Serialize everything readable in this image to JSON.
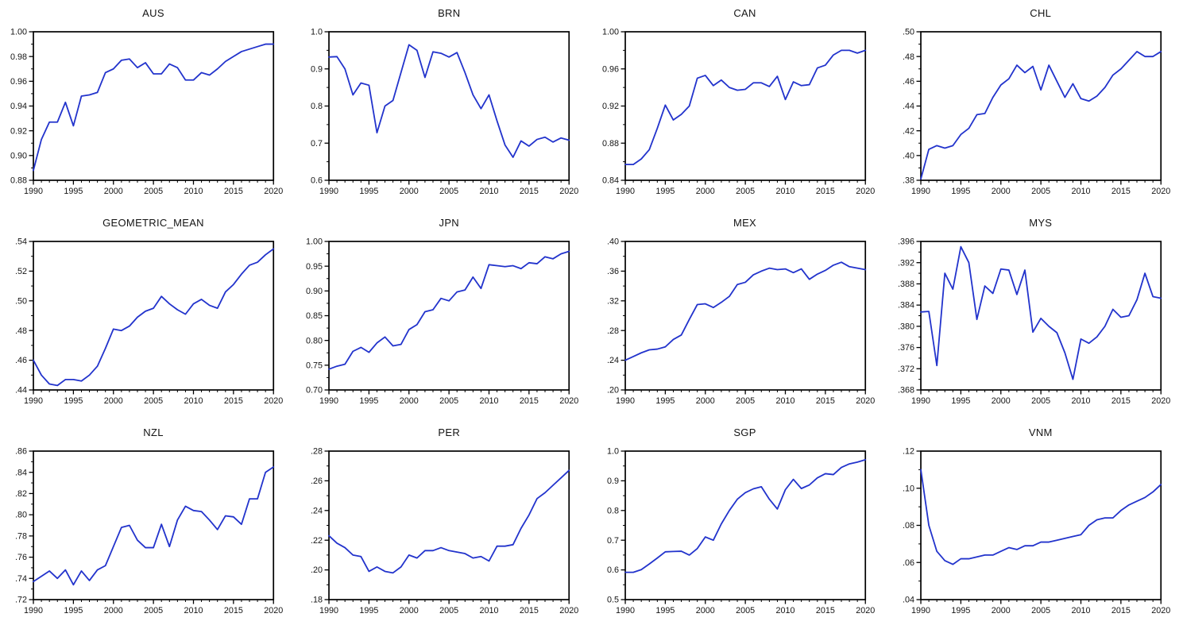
{
  "page": {
    "background": "#ffffff",
    "axis_color": "#000000",
    "label_color": "#141414",
    "series_color": "#2233cc",
    "layout": "4x3 grid of line chart panels",
    "grid": false,
    "legend": false
  },
  "chart_data": [
    {
      "type": "line",
      "title": "AUS",
      "xlabel": "",
      "ylabel": "",
      "x": [
        1990,
        1991,
        1992,
        1993,
        1994,
        1995,
        1996,
        1997,
        1998,
        1999,
        2000,
        2001,
        2002,
        2003,
        2004,
        2005,
        2006,
        2007,
        2008,
        2009,
        2010,
        2011,
        2012,
        2013,
        2014,
        2015,
        2016,
        2017,
        2018,
        2019,
        2020
      ],
      "values": [
        0.888,
        0.913,
        0.927,
        0.927,
        0.943,
        0.924,
        0.948,
        0.949,
        0.951,
        0.967,
        0.97,
        0.977,
        0.978,
        0.971,
        0.975,
        0.966,
        0.966,
        0.974,
        0.971,
        0.961,
        0.961,
        0.967,
        0.965,
        0.97,
        0.976,
        0.98,
        0.984,
        0.986,
        0.988,
        0.99,
        0.99
      ],
      "ylim": [
        0.88,
        1.0
      ],
      "ytick_values": [
        0.88,
        0.9,
        0.92,
        0.94,
        0.96,
        0.98,
        1.0
      ],
      "ytick_labels": [
        "0.88",
        "0.90",
        "0.92",
        "0.94",
        "0.96",
        "0.98",
        "1.00"
      ],
      "xtick_values": [
        1990,
        1995,
        2000,
        2005,
        2010,
        2015,
        2020
      ],
      "xtick_labels": [
        "1990",
        "1995",
        "2000",
        "2005",
        "2010",
        "2015",
        "2020"
      ]
    },
    {
      "type": "line",
      "title": "BRN",
      "xlabel": "",
      "ylabel": "",
      "x": [
        1990,
        1991,
        1992,
        1993,
        1994,
        1995,
        1996,
        1997,
        1998,
        1999,
        2000,
        2001,
        2002,
        2003,
        2004,
        2005,
        2006,
        2007,
        2008,
        2009,
        2010,
        2011,
        2012,
        2013,
        2014,
        2015,
        2016,
        2017,
        2018,
        2019,
        2020
      ],
      "values": [
        0.932,
        0.933,
        0.9,
        0.83,
        0.862,
        0.856,
        0.728,
        0.8,
        0.815,
        0.89,
        0.965,
        0.95,
        0.877,
        0.946,
        0.942,
        0.932,
        0.944,
        0.89,
        0.83,
        0.793,
        0.83,
        0.76,
        0.695,
        0.662,
        0.706,
        0.692,
        0.71,
        0.716,
        0.703,
        0.714,
        0.708
      ],
      "ylim": [
        0.6,
        1.0
      ],
      "ytick_values": [
        0.6,
        0.7,
        0.8,
        0.9,
        1.0
      ],
      "ytick_labels": [
        "0.6",
        "0.7",
        "0.8",
        "0.9",
        "1.0"
      ],
      "xtick_values": [
        1990,
        1995,
        2000,
        2005,
        2010,
        2015,
        2020
      ],
      "xtick_labels": [
        "1990",
        "1995",
        "2000",
        "2005",
        "2010",
        "2015",
        "2020"
      ]
    },
    {
      "type": "line",
      "title": "CAN",
      "xlabel": "",
      "ylabel": "",
      "x": [
        1990,
        1991,
        1992,
        1993,
        1994,
        1995,
        1996,
        1997,
        1998,
        1999,
        2000,
        2001,
        2002,
        2003,
        2004,
        2005,
        2006,
        2007,
        2008,
        2009,
        2010,
        2011,
        2012,
        2013,
        2014,
        2015,
        2016,
        2017,
        2018,
        2019,
        2020
      ],
      "values": [
        0.857,
        0.857,
        0.863,
        0.873,
        0.896,
        0.921,
        0.905,
        0.911,
        0.92,
        0.95,
        0.953,
        0.942,
        0.948,
        0.94,
        0.937,
        0.938,
        0.945,
        0.945,
        0.941,
        0.952,
        0.927,
        0.946,
        0.942,
        0.943,
        0.961,
        0.964,
        0.975,
        0.98,
        0.98,
        0.977,
        0.98
      ],
      "ylim": [
        0.84,
        1.0
      ],
      "ytick_values": [
        0.84,
        0.88,
        0.92,
        0.96,
        1.0
      ],
      "ytick_labels": [
        "0.84",
        "0.88",
        "0.92",
        "0.96",
        "1.00"
      ],
      "xtick_values": [
        1990,
        1995,
        2000,
        2005,
        2010,
        2015,
        2020
      ],
      "xtick_labels": [
        "1990",
        "1995",
        "2000",
        "2005",
        "2010",
        "2015",
        "2020"
      ]
    },
    {
      "type": "line",
      "title": "CHL",
      "xlabel": "",
      "ylabel": "",
      "x": [
        1990,
        1991,
        1992,
        1993,
        1994,
        1995,
        1996,
        1997,
        1998,
        1999,
        2000,
        2001,
        2002,
        2003,
        2004,
        2005,
        2006,
        2007,
        2008,
        2009,
        2010,
        2011,
        2012,
        2013,
        2014,
        2015,
        2016,
        2017,
        2018,
        2019,
        2020
      ],
      "values": [
        0.381,
        0.405,
        0.408,
        0.406,
        0.408,
        0.417,
        0.422,
        0.433,
        0.434,
        0.447,
        0.457,
        0.462,
        0.473,
        0.467,
        0.472,
        0.453,
        0.473,
        0.46,
        0.447,
        0.458,
        0.446,
        0.444,
        0.448,
        0.455,
        0.465,
        0.47,
        0.477,
        0.484,
        0.48,
        0.48,
        0.484
      ],
      "ylim": [
        0.38,
        0.5
      ],
      "ytick_values": [
        0.38,
        0.4,
        0.42,
        0.44,
        0.46,
        0.48,
        0.5
      ],
      "ytick_labels": [
        ".38",
        ".40",
        ".42",
        ".44",
        ".46",
        ".48",
        ".50"
      ],
      "xtick_values": [
        1990,
        1995,
        2000,
        2005,
        2010,
        2015,
        2020
      ],
      "xtick_labels": [
        "1990",
        "1995",
        "2000",
        "2005",
        "2010",
        "2015",
        "2020"
      ]
    },
    {
      "type": "line",
      "title": "GEOMETRIC_MEAN",
      "xlabel": "",
      "ylabel": "",
      "x": [
        1990,
        1991,
        1992,
        1993,
        1994,
        1995,
        1996,
        1997,
        1998,
        1999,
        2000,
        2001,
        2002,
        2003,
        2004,
        2005,
        2006,
        2007,
        2008,
        2009,
        2010,
        2011,
        2012,
        2013,
        2014,
        2015,
        2016,
        2017,
        2018,
        2019,
        2020
      ],
      "values": [
        0.46,
        0.45,
        0.444,
        0.443,
        0.447,
        0.447,
        0.446,
        0.45,
        0.456,
        0.468,
        0.481,
        0.48,
        0.483,
        0.489,
        0.493,
        0.495,
        0.503,
        0.498,
        0.494,
        0.491,
        0.498,
        0.501,
        0.497,
        0.495,
        0.506,
        0.511,
        0.518,
        0.524,
        0.526,
        0.531,
        0.535
      ],
      "ylim": [
        0.44,
        0.54
      ],
      "ytick_values": [
        0.44,
        0.46,
        0.48,
        0.5,
        0.52,
        0.54
      ],
      "ytick_labels": [
        ".44",
        ".46",
        ".48",
        ".50",
        ".52",
        ".54"
      ],
      "xtick_values": [
        1990,
        1995,
        2000,
        2005,
        2010,
        2015,
        2020
      ],
      "xtick_labels": [
        "1990",
        "1995",
        "2000",
        "2005",
        "2010",
        "2015",
        "2020"
      ]
    },
    {
      "type": "line",
      "title": "JPN",
      "xlabel": "",
      "ylabel": "",
      "x": [
        1990,
        1991,
        1992,
        1993,
        1994,
        1995,
        1996,
        1997,
        1998,
        1999,
        2000,
        2001,
        2002,
        2003,
        2004,
        2005,
        2006,
        2007,
        2008,
        2009,
        2010,
        2011,
        2012,
        2013,
        2014,
        2015,
        2016,
        2017,
        2018,
        2019,
        2020
      ],
      "values": [
        0.742,
        0.748,
        0.752,
        0.778,
        0.786,
        0.776,
        0.795,
        0.807,
        0.789,
        0.792,
        0.822,
        0.832,
        0.858,
        0.862,
        0.885,
        0.88,
        0.898,
        0.902,
        0.928,
        0.905,
        0.953,
        0.951,
        0.949,
        0.951,
        0.945,
        0.957,
        0.955,
        0.969,
        0.965,
        0.975,
        0.98
      ],
      "ylim": [
        0.7,
        1.0
      ],
      "ytick_values": [
        0.7,
        0.75,
        0.8,
        0.85,
        0.9,
        0.95,
        1.0
      ],
      "ytick_labels": [
        "0.70",
        "0.75",
        "0.80",
        "0.85",
        "0.90",
        "0.95",
        "1.00"
      ],
      "xtick_values": [
        1990,
        1995,
        2000,
        2005,
        2010,
        2015,
        2020
      ],
      "xtick_labels": [
        "1990",
        "1995",
        "2000",
        "2005",
        "2010",
        "2015",
        "2020"
      ]
    },
    {
      "type": "line",
      "title": "MEX",
      "xlabel": "",
      "ylabel": "",
      "x": [
        1990,
        1991,
        1992,
        1993,
        1994,
        1995,
        1996,
        1997,
        1998,
        1999,
        2000,
        2001,
        2002,
        2003,
        2004,
        2005,
        2006,
        2007,
        2008,
        2009,
        2010,
        2011,
        2012,
        2013,
        2014,
        2015,
        2016,
        2017,
        2018,
        2019,
        2020
      ],
      "values": [
        0.24,
        0.245,
        0.25,
        0.254,
        0.255,
        0.258,
        0.268,
        0.274,
        0.295,
        0.315,
        0.316,
        0.311,
        0.318,
        0.326,
        0.342,
        0.345,
        0.355,
        0.36,
        0.364,
        0.362,
        0.363,
        0.358,
        0.363,
        0.349,
        0.356,
        0.361,
        0.368,
        0.372,
        0.366,
        0.364,
        0.362
      ],
      "ylim": [
        0.2,
        0.4
      ],
      "ytick_values": [
        0.2,
        0.24,
        0.28,
        0.32,
        0.36,
        0.4
      ],
      "ytick_labels": [
        ".20",
        ".24",
        ".28",
        ".32",
        ".36",
        ".40"
      ],
      "xtick_values": [
        1990,
        1995,
        2000,
        2005,
        2010,
        2015,
        2020
      ],
      "xtick_labels": [
        "1990",
        "1995",
        "2000",
        "2005",
        "2010",
        "2015",
        "2020"
      ]
    },
    {
      "type": "line",
      "title": "MYS",
      "xlabel": "",
      "ylabel": "",
      "x": [
        1990,
        1991,
        1992,
        1993,
        1994,
        1995,
        1996,
        1997,
        1998,
        1999,
        2000,
        2001,
        2002,
        2003,
        2004,
        2005,
        2006,
        2007,
        2008,
        2009,
        2010,
        2011,
        2012,
        2013,
        2014,
        2015,
        2016,
        2017,
        2018,
        2019,
        2020
      ],
      "values": [
        0.3827,
        0.3828,
        0.3726,
        0.39,
        0.387,
        0.395,
        0.392,
        0.3813,
        0.3876,
        0.3862,
        0.3908,
        0.3906,
        0.386,
        0.3906,
        0.3789,
        0.3815,
        0.38,
        0.3788,
        0.375,
        0.37,
        0.3776,
        0.3768,
        0.378,
        0.38,
        0.3832,
        0.3817,
        0.382,
        0.385,
        0.39,
        0.3856,
        0.3853
      ],
      "ylim": [
        0.368,
        0.396
      ],
      "ytick_values": [
        0.368,
        0.372,
        0.376,
        0.38,
        0.384,
        0.388,
        0.392,
        0.396
      ],
      "ytick_labels": [
        ".368",
        ".372",
        ".376",
        ".380",
        ".384",
        ".388",
        ".392",
        ".396"
      ],
      "xtick_values": [
        1990,
        1995,
        2000,
        2005,
        2010,
        2015,
        2020
      ],
      "xtick_labels": [
        "1990",
        "1995",
        "2000",
        "2005",
        "2010",
        "2015",
        "2020"
      ]
    },
    {
      "type": "line",
      "title": "NZL",
      "xlabel": "",
      "ylabel": "",
      "x": [
        1990,
        1991,
        1992,
        1993,
        1994,
        1995,
        1996,
        1997,
        1998,
        1999,
        2000,
        2001,
        2002,
        2003,
        2004,
        2005,
        2006,
        2007,
        2008,
        2009,
        2010,
        2011,
        2012,
        2013,
        2014,
        2015,
        2016,
        2017,
        2018,
        2019,
        2020
      ],
      "values": [
        0.737,
        0.742,
        0.747,
        0.74,
        0.748,
        0.734,
        0.747,
        0.738,
        0.748,
        0.752,
        0.77,
        0.788,
        0.79,
        0.776,
        0.769,
        0.769,
        0.791,
        0.77,
        0.795,
        0.808,
        0.804,
        0.803,
        0.795,
        0.786,
        0.799,
        0.798,
        0.791,
        0.815,
        0.815,
        0.84,
        0.845
      ],
      "ylim": [
        0.72,
        0.86
      ],
      "ytick_values": [
        0.72,
        0.74,
        0.76,
        0.78,
        0.8,
        0.82,
        0.84,
        0.86
      ],
      "ytick_labels": [
        ".72",
        ".74",
        ".76",
        ".78",
        ".80",
        ".82",
        ".84",
        ".86"
      ],
      "xtick_values": [
        1990,
        1995,
        2000,
        2005,
        2010,
        2015,
        2020
      ],
      "xtick_labels": [
        "1990",
        "1995",
        "2000",
        "2005",
        "2010",
        "2015",
        "2020"
      ]
    },
    {
      "type": "line",
      "title": "PER",
      "xlabel": "",
      "ylabel": "",
      "x": [
        1990,
        1991,
        1992,
        1993,
        1994,
        1995,
        1996,
        1997,
        1998,
        1999,
        2000,
        2001,
        2002,
        2003,
        2004,
        2005,
        2006,
        2007,
        2008,
        2009,
        2010,
        2011,
        2012,
        2013,
        2014,
        2015,
        2016,
        2017,
        2018,
        2019,
        2020
      ],
      "values": [
        0.223,
        0.218,
        0.215,
        0.21,
        0.209,
        0.199,
        0.202,
        0.199,
        0.198,
        0.202,
        0.21,
        0.208,
        0.213,
        0.213,
        0.215,
        0.213,
        0.212,
        0.211,
        0.208,
        0.209,
        0.206,
        0.216,
        0.216,
        0.217,
        0.228,
        0.237,
        0.248,
        0.252,
        0.257,
        0.262,
        0.267
      ],
      "ylim": [
        0.18,
        0.28
      ],
      "ytick_values": [
        0.18,
        0.2,
        0.22,
        0.24,
        0.26,
        0.28
      ],
      "ytick_labels": [
        ".18",
        ".20",
        ".22",
        ".24",
        ".26",
        ".28"
      ],
      "xtick_values": [
        1990,
        1995,
        2000,
        2005,
        2010,
        2015,
        2020
      ],
      "xtick_labels": [
        "1990",
        "1995",
        "2000",
        "2005",
        "2010",
        "2015",
        "2020"
      ]
    },
    {
      "type": "line",
      "title": "SGP",
      "xlabel": "",
      "ylabel": "",
      "x": [
        1990,
        1991,
        1992,
        1993,
        1994,
        1995,
        1996,
        1997,
        1998,
        1999,
        2000,
        2001,
        2002,
        2003,
        2004,
        2005,
        2006,
        2007,
        2008,
        2009,
        2010,
        2011,
        2012,
        2013,
        2014,
        2015,
        2016,
        2017,
        2018,
        2019,
        2020
      ],
      "values": [
        0.592,
        0.592,
        0.601,
        0.62,
        0.64,
        0.661,
        0.662,
        0.663,
        0.65,
        0.672,
        0.711,
        0.7,
        0.755,
        0.8,
        0.838,
        0.86,
        0.873,
        0.88,
        0.838,
        0.805,
        0.87,
        0.905,
        0.874,
        0.886,
        0.91,
        0.924,
        0.921,
        0.945,
        0.957,
        0.963,
        0.971
      ],
      "ylim": [
        0.5,
        1.0
      ],
      "ytick_values": [
        0.5,
        0.6,
        0.7,
        0.8,
        0.9,
        1.0
      ],
      "ytick_labels": [
        "0.5",
        "0.6",
        "0.7",
        "0.8",
        "0.9",
        "1.0"
      ],
      "xtick_values": [
        1990,
        1995,
        2000,
        2005,
        2010,
        2015,
        2020
      ],
      "xtick_labels": [
        "1990",
        "1995",
        "2000",
        "2005",
        "2010",
        "2015",
        "2020"
      ]
    },
    {
      "type": "line",
      "title": "VNM",
      "xlabel": "",
      "ylabel": "",
      "x": [
        1990,
        1991,
        1992,
        1993,
        1994,
        1995,
        1996,
        1997,
        1998,
        1999,
        2000,
        2001,
        2002,
        2003,
        2004,
        2005,
        2006,
        2007,
        2008,
        2009,
        2010,
        2011,
        2012,
        2013,
        2014,
        2015,
        2016,
        2017,
        2018,
        2019,
        2020
      ],
      "values": [
        0.11,
        0.08,
        0.066,
        0.061,
        0.059,
        0.062,
        0.062,
        0.063,
        0.064,
        0.064,
        0.066,
        0.068,
        0.067,
        0.069,
        0.069,
        0.071,
        0.071,
        0.072,
        0.073,
        0.074,
        0.075,
        0.08,
        0.083,
        0.084,
        0.084,
        0.088,
        0.091,
        0.093,
        0.095,
        0.098,
        0.102
      ],
      "ylim": [
        0.04,
        0.12
      ],
      "ytick_values": [
        0.04,
        0.06,
        0.08,
        0.1,
        0.12
      ],
      "ytick_labels": [
        ".04",
        ".06",
        ".08",
        ".10",
        ".12"
      ],
      "xtick_values": [
        1990,
        1995,
        2000,
        2005,
        2010,
        2015,
        2020
      ],
      "xtick_labels": [
        "1990",
        "1995",
        "2000",
        "2005",
        "2010",
        "2015",
        "2020"
      ]
    }
  ]
}
